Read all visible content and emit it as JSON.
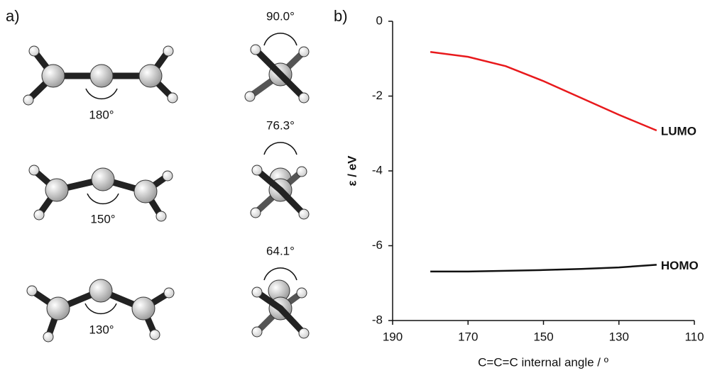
{
  "panel_a": {
    "label": "a)",
    "bend_angles": [
      "180°",
      "150°",
      "130°"
    ],
    "dihedral_angles": [
      "90.0°",
      "76.3°",
      "64.1°"
    ]
  },
  "chart_data": {
    "type": "line",
    "panel_label": "b)",
    "x": [
      180,
      170,
      160,
      150,
      140,
      130,
      120
    ],
    "series": [
      {
        "name": "LUMO",
        "color": "#e8191c",
        "values": [
          -0.82,
          -0.95,
          -1.2,
          -1.6,
          -2.05,
          -2.5,
          -2.92
        ]
      },
      {
        "name": "HOMO",
        "color": "#111111",
        "values": [
          -6.69,
          -6.69,
          -6.67,
          -6.65,
          -6.62,
          -6.58,
          -6.51
        ]
      }
    ],
    "xlim": [
      190,
      110
    ],
    "xticks": [
      190,
      170,
      150,
      130,
      110
    ],
    "ylim": [
      -8,
      0
    ],
    "yticks": [
      0,
      -2,
      -4,
      -6,
      -8
    ],
    "x_label": "C=C=C internal angle / º",
    "y_label": "ε / eV"
  }
}
